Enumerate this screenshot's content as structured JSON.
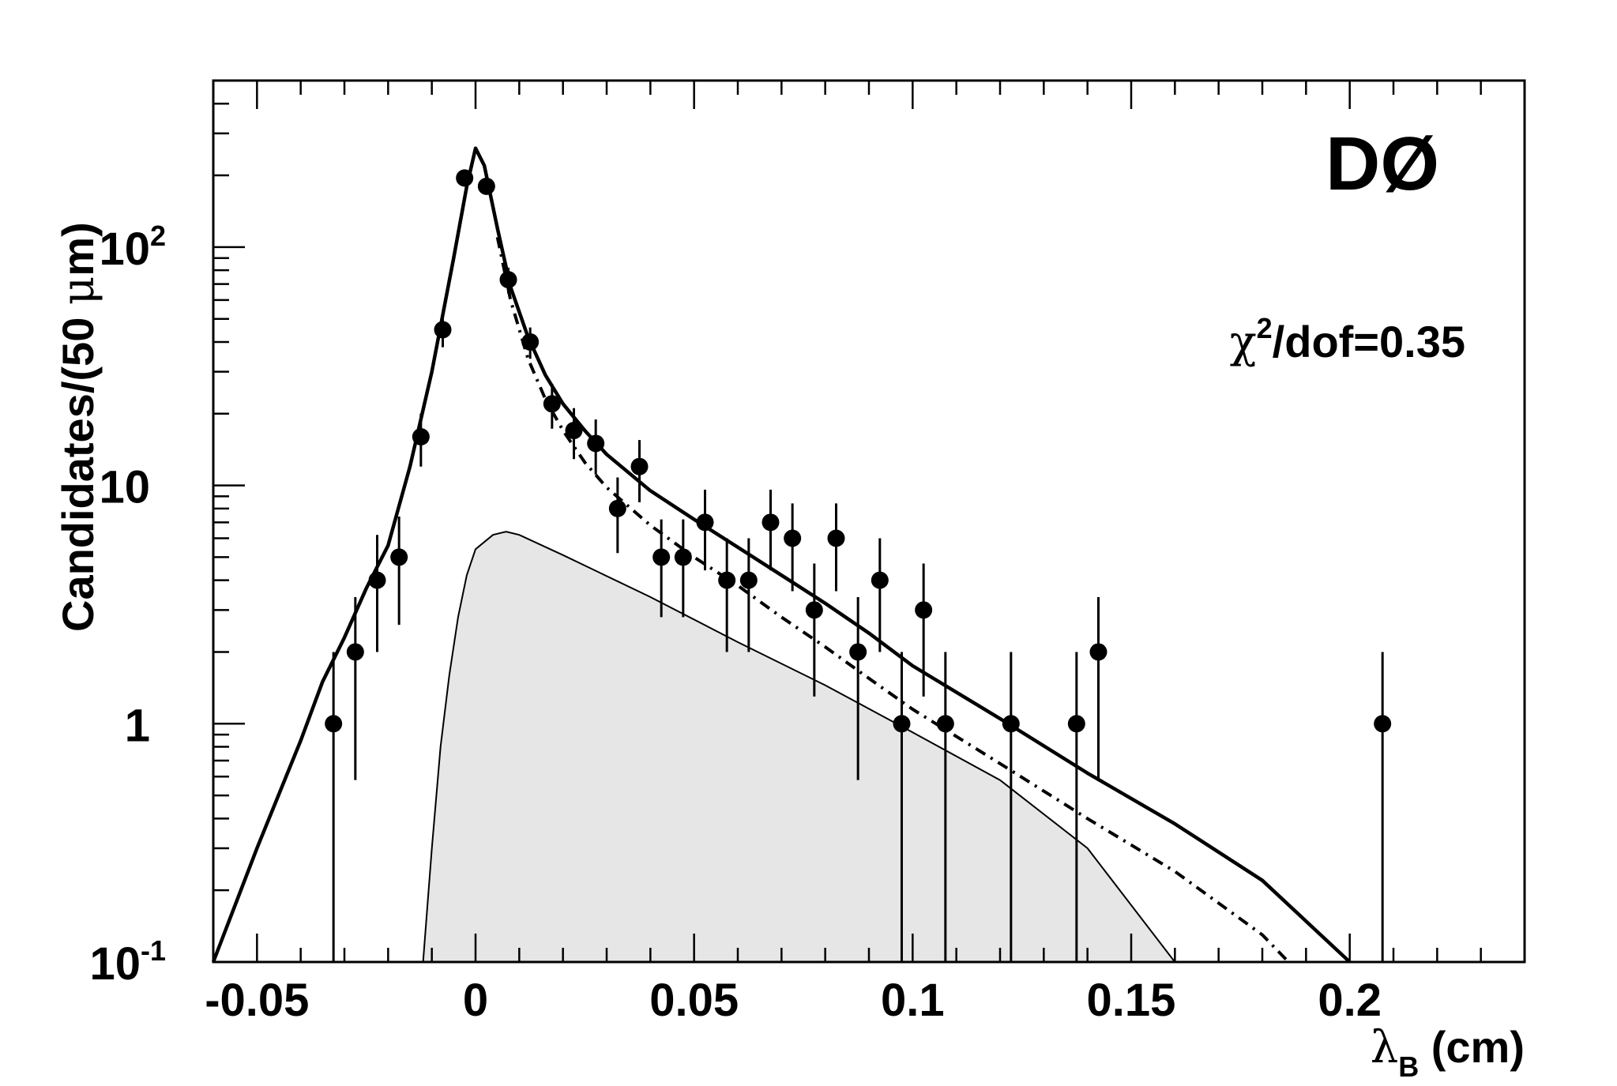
{
  "chart_data": {
    "type": "scatter",
    "yscale": "log",
    "xlim": [
      -0.06,
      0.24
    ],
    "ylim": [
      0.1,
      500
    ],
    "grid": false,
    "xlabel": {
      "main": "λ",
      "sub": "B",
      "rest": " (cm)"
    },
    "ylabel": {
      "prefix": "Candidates/(50 ",
      "mu": "μ",
      "suffix": "m)"
    },
    "experiment_label": "DØ",
    "fit_label": {
      "chi": "χ",
      "sup": "2",
      "rest": "/dof=0.35"
    },
    "x_ticks": [
      {
        "value": -0.05,
        "label": "-0.05"
      },
      {
        "value": 0,
        "label": "0"
      },
      {
        "value": 0.05,
        "label": "0.05"
      },
      {
        "value": 0.1,
        "label": "0.1"
      },
      {
        "value": 0.15,
        "label": "0.15"
      },
      {
        "value": 0.2,
        "label": "0.2"
      }
    ],
    "y_ticks": [
      {
        "value": 0.1,
        "base": "10",
        "exp": "-1"
      },
      {
        "value": 1,
        "base": "1",
        "exp": ""
      },
      {
        "value": 10,
        "base": "10",
        "exp": ""
      },
      {
        "value": 100,
        "base": "10",
        "exp": "2"
      }
    ],
    "data_points": [
      {
        "x": -0.0325,
        "y": 1,
        "lo": 0.1,
        "hi": 2
      },
      {
        "x": -0.0275,
        "y": 2,
        "lo": 0.58,
        "hi": 3.4
      },
      {
        "x": -0.0225,
        "y": 4,
        "lo": 2.0,
        "hi": 6.2
      },
      {
        "x": -0.0175,
        "y": 5,
        "lo": 2.6,
        "hi": 7.4
      },
      {
        "x": -0.0125,
        "y": 16,
        "lo": 12,
        "hi": 20
      },
      {
        "x": -0.0075,
        "y": 45,
        "lo": 38,
        "hi": 52
      },
      {
        "x": -0.0025,
        "y": 195,
        "lo": 181,
        "hi": 209
      },
      {
        "x": 0.0025,
        "y": 180,
        "lo": 167,
        "hi": 193
      },
      {
        "x": 0.0075,
        "y": 73,
        "lo": 64,
        "hi": 82
      },
      {
        "x": 0.0125,
        "y": 40,
        "lo": 34,
        "hi": 46
      },
      {
        "x": 0.0175,
        "y": 22,
        "lo": 17.3,
        "hi": 26.7
      },
      {
        "x": 0.0225,
        "y": 17,
        "lo": 12.9,
        "hi": 21.1
      },
      {
        "x": 0.0275,
        "y": 15,
        "lo": 11.1,
        "hi": 18.9
      },
      {
        "x": 0.0325,
        "y": 8,
        "lo": 5.2,
        "hi": 10.8
      },
      {
        "x": 0.0375,
        "y": 12,
        "lo": 8.5,
        "hi": 15.5
      },
      {
        "x": 0.0425,
        "y": 5,
        "lo": 2.8,
        "hi": 7.2
      },
      {
        "x": 0.0475,
        "y": 5,
        "lo": 2.8,
        "hi": 7.2
      },
      {
        "x": 0.0525,
        "y": 7,
        "lo": 4.4,
        "hi": 9.6
      },
      {
        "x": 0.0575,
        "y": 4,
        "lo": 2.0,
        "hi": 6.0
      },
      {
        "x": 0.0625,
        "y": 4,
        "lo": 2.0,
        "hi": 6.0
      },
      {
        "x": 0.0675,
        "y": 7,
        "lo": 4.4,
        "hi": 9.6
      },
      {
        "x": 0.0725,
        "y": 6,
        "lo": 3.6,
        "hi": 8.4
      },
      {
        "x": 0.0775,
        "y": 3,
        "lo": 1.3,
        "hi": 4.7
      },
      {
        "x": 0.0825,
        "y": 6,
        "lo": 3.6,
        "hi": 8.4
      },
      {
        "x": 0.0875,
        "y": 2,
        "lo": 0.58,
        "hi": 3.4
      },
      {
        "x": 0.0925,
        "y": 4,
        "lo": 2.0,
        "hi": 6.0
      },
      {
        "x": 0.0975,
        "y": 1,
        "lo": 0.1,
        "hi": 2
      },
      {
        "x": 0.1025,
        "y": 3,
        "lo": 1.3,
        "hi": 4.7
      },
      {
        "x": 0.1075,
        "y": 1,
        "lo": 0.1,
        "hi": 2
      },
      {
        "x": 0.1225,
        "y": 1,
        "lo": 0.1,
        "hi": 2
      },
      {
        "x": 0.1375,
        "y": 1,
        "lo": 0.1,
        "hi": 2
      },
      {
        "x": 0.1425,
        "y": 2,
        "lo": 0.58,
        "hi": 3.4
      },
      {
        "x": 0.2075,
        "y": 1,
        "lo": 0.1,
        "hi": 2
      }
    ],
    "curves": {
      "total_fit": {
        "style": "solid",
        "points": [
          [
            -0.06,
            0.1
          ],
          [
            -0.05,
            0.3
          ],
          [
            -0.04,
            0.85
          ],
          [
            -0.035,
            1.5
          ],
          [
            -0.03,
            2.3
          ],
          [
            -0.025,
            3.7
          ],
          [
            -0.02,
            5.6
          ],
          [
            -0.015,
            12
          ],
          [
            -0.01,
            30
          ],
          [
            -0.005,
            90
          ],
          [
            -0.002,
            180
          ],
          [
            0,
            260
          ],
          [
            0.002,
            220
          ],
          [
            0.005,
            120
          ],
          [
            0.008,
            68
          ],
          [
            0.012,
            42
          ],
          [
            0.016,
            29
          ],
          [
            0.02,
            22
          ],
          [
            0.025,
            17
          ],
          [
            0.03,
            13.5
          ],
          [
            0.04,
            9.5
          ],
          [
            0.05,
            7.2
          ],
          [
            0.06,
            5.5
          ],
          [
            0.07,
            4.2
          ],
          [
            0.08,
            3.2
          ],
          [
            0.09,
            2.4
          ],
          [
            0.1,
            1.75
          ],
          [
            0.12,
            1.05
          ],
          [
            0.14,
            0.62
          ],
          [
            0.16,
            0.38
          ],
          [
            0.18,
            0.22
          ],
          [
            0.2,
            0.1
          ]
        ]
      },
      "background_fit": {
        "style": "dash-dot",
        "points": [
          [
            0.005,
            110
          ],
          [
            0.008,
            60
          ],
          [
            0.012,
            34
          ],
          [
            0.016,
            23
          ],
          [
            0.02,
            17
          ],
          [
            0.025,
            12.5
          ],
          [
            0.03,
            9.8
          ],
          [
            0.04,
            6.8
          ],
          [
            0.05,
            5.0
          ],
          [
            0.06,
            3.8
          ],
          [
            0.07,
            2.8
          ],
          [
            0.08,
            2.1
          ],
          [
            0.09,
            1.55
          ],
          [
            0.1,
            1.15
          ],
          [
            0.12,
            0.68
          ],
          [
            0.14,
            0.4
          ],
          [
            0.16,
            0.24
          ],
          [
            0.18,
            0.13
          ],
          [
            0.186,
            0.1
          ]
        ]
      },
      "signal": {
        "style": "filled",
        "fill": "#e6e6e6",
        "points": [
          [
            -0.012,
            0.1
          ],
          [
            -0.01,
            0.3
          ],
          [
            -0.008,
            0.8
          ],
          [
            -0.006,
            1.6
          ],
          [
            -0.004,
            2.8
          ],
          [
            -0.002,
            4.2
          ],
          [
            0,
            5.4
          ],
          [
            0.004,
            6.2
          ],
          [
            0.007,
            6.4
          ],
          [
            0.01,
            6.2
          ],
          [
            0.02,
            5.1
          ],
          [
            0.04,
            3.4
          ],
          [
            0.06,
            2.2
          ],
          [
            0.08,
            1.45
          ],
          [
            0.1,
            0.92
          ],
          [
            0.12,
            0.58
          ],
          [
            0.14,
            0.3
          ],
          [
            0.16,
            0.1
          ]
        ]
      }
    },
    "colors": {
      "axes": "#000000",
      "markers": "#000000",
      "signal_fill": "#e6e6e6"
    }
  }
}
